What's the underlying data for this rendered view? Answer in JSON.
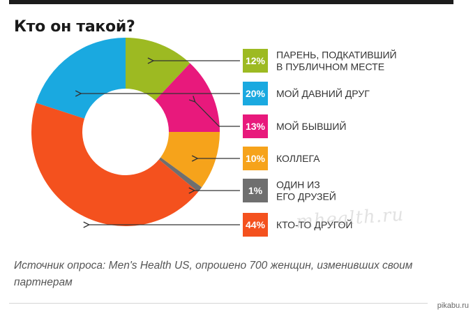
{
  "chart_data": {
    "type": "pie",
    "title": "Кто он такой?",
    "slices": [
      {
        "pct_label": "12%",
        "lines": [
          "ПАРЕНЬ, ПОДКАТИВШИЙ",
          "В ПУБЛИЧНОМ МЕСТЕ"
        ],
        "value": 12,
        "color": "#9dba22"
      },
      {
        "pct_label": "13%",
        "lines": [
          "МОЙ БЫВШИЙ"
        ],
        "value": 13,
        "color": "#e8197c"
      },
      {
        "pct_label": "10%",
        "lines": [
          "КОЛЛЕГА"
        ],
        "value": 10,
        "color": "#f6a31b"
      },
      {
        "pct_label": "1%",
        "lines": [
          "ОДИН ИЗ",
          "ЕГО ДРУЗЕЙ"
        ],
        "value": 1,
        "color": "#6f6f6f"
      },
      {
        "pct_label": "44%",
        "lines": [
          "КТО-ТО ДРУГОЙ"
        ],
        "value": 44,
        "color": "#f4511e"
      },
      {
        "pct_label": "20%",
        "lines": [
          "МОЙ ДАВНИЙ ДРУГ"
        ],
        "value": 20,
        "color": "#1aa9e0"
      }
    ],
    "legend_order": [
      0,
      5,
      1,
      2,
      3,
      4
    ],
    "source": "Источник опроса: Men's Health US, опрошено 700 женщин, изменивших своим партнерам"
  },
  "watermark": "mhealth.ru",
  "site_tag": "pikabu.ru",
  "colors": {
    "arrow": "#333333",
    "text": "#333333"
  }
}
